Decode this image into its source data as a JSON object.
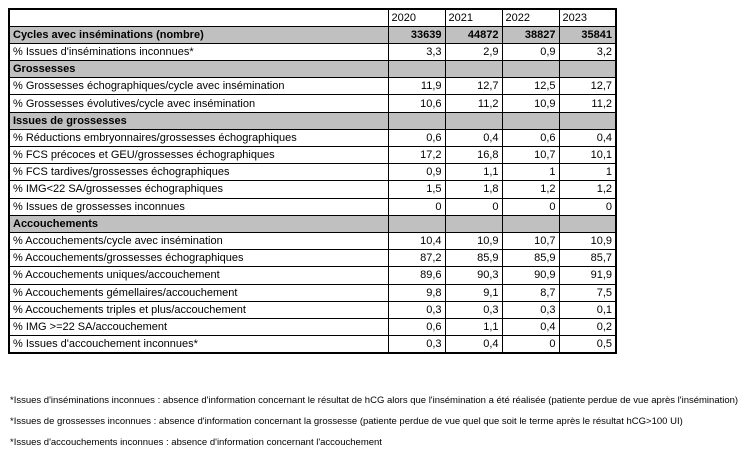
{
  "colors": {
    "section_bg": "#c0c0c0",
    "border": "#000000",
    "background": "#ffffff"
  },
  "years": [
    "2020",
    "2021",
    "2022",
    "2023"
  ],
  "table": {
    "rows": [
      {
        "type": "section-values",
        "label": "Cycles avec inséminations (nombre)",
        "values": [
          "33639",
          "44872",
          "38827",
          "35841"
        ]
      },
      {
        "type": "data",
        "label": "% Issues d'inséminations inconnues*",
        "values": [
          "3,3",
          "2,9",
          "0,9",
          "3,2"
        ]
      },
      {
        "type": "section",
        "label": "Grossesses",
        "values": [
          "",
          "",
          "",
          ""
        ]
      },
      {
        "type": "data",
        "label": "% Grossesses échographiques/cycle avec insémination",
        "values": [
          "11,9",
          "12,7",
          "12,5",
          "12,7"
        ]
      },
      {
        "type": "data",
        "label": "% Grossesses évolutives/cycle avec insémination",
        "values": [
          "10,6",
          "11,2",
          "10,9",
          "11,2"
        ]
      },
      {
        "type": "section",
        "label": "Issues de grossesses",
        "values": [
          "",
          "",
          "",
          ""
        ]
      },
      {
        "type": "data",
        "label": "% Réductions embryonnaires/grossesses échographiques",
        "values": [
          "0,6",
          "0,4",
          "0,6",
          "0,4"
        ]
      },
      {
        "type": "data",
        "label": "% FCS précoces et GEU/grossesses échographiques",
        "values": [
          "17,2",
          "16,8",
          "10,7",
          "10,1"
        ]
      },
      {
        "type": "data",
        "label": "% FCS tardives/grossesses échographiques",
        "values": [
          "0,9",
          "1,1",
          "1",
          "1"
        ]
      },
      {
        "type": "data",
        "label": "% IMG<22 SA/grossesses échographiques",
        "values": [
          "1,5",
          "1,8",
          "1,2",
          "1,2"
        ]
      },
      {
        "type": "data",
        "label": "% Issues de grossesses inconnues",
        "values": [
          "0",
          "0",
          "0",
          "0"
        ]
      },
      {
        "type": "section",
        "label": "Accouchements",
        "values": [
          "",
          "",
          "",
          ""
        ]
      },
      {
        "type": "data",
        "label": "% Accouchements/cycle avec insémination",
        "values": [
          "10,4",
          "10,9",
          "10,7",
          "10,9"
        ]
      },
      {
        "type": "data",
        "label": "% Accouchements/grossesses échographiques",
        "values": [
          "87,2",
          "85,9",
          "85,9",
          "85,7"
        ]
      },
      {
        "type": "data",
        "label": "% Accouchements uniques/accouchement",
        "values": [
          "89,6",
          "90,3",
          "90,9",
          "91,9"
        ]
      },
      {
        "type": "data",
        "label": "% Accouchements gémellaires/accouchement",
        "values": [
          "9,8",
          "9,1",
          "8,7",
          "7,5"
        ]
      },
      {
        "type": "data",
        "label": "% Accouchements triples et plus/accouchement",
        "values": [
          "0,3",
          "0,3",
          "0,3",
          "0,1"
        ]
      },
      {
        "type": "data",
        "label": "% IMG >=22 SA/accouchement",
        "values": [
          "0,6",
          "1,1",
          "0,4",
          "0,2"
        ]
      },
      {
        "type": "data",
        "label": "% Issues d'accouchement inconnues*",
        "values": [
          "0,3",
          "0,4",
          "0",
          "0,5"
        ]
      }
    ]
  },
  "footnotes": [
    "*Issues d'inséminations inconnues : absence d'information concernant le résultat de hCG alors que l'insémination a été réalisée (patiente perdue de vue après l'insémination)",
    "*Issues de grossesses inconnues : absence d'information concernant la grossesse (patiente perdue de vue quel que soit le terme après le résultat hCG>100 UI)",
    "*Issues d'accouchements inconnues : absence d'information concernant l'accouchement"
  ]
}
